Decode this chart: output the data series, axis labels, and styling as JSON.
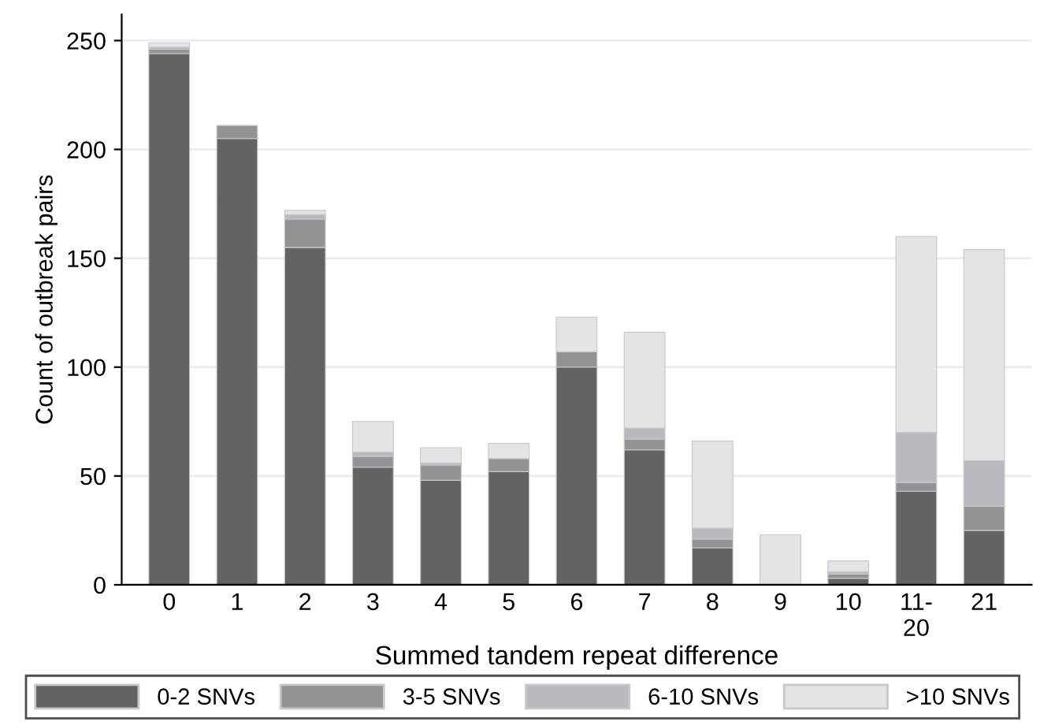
{
  "chart_data": {
    "type": "bar",
    "stacked": true,
    "xlabel": "Summed tandem repeat difference",
    "ylabel": "Count of outbreak pairs",
    "categories": [
      "0",
      "1",
      "2",
      "3",
      "4",
      "5",
      "6",
      "7",
      "8",
      "9",
      "10",
      "11-\n20",
      "21"
    ],
    "series": [
      {
        "name": "0-2 SNVs",
        "color": "#636365",
        "values": [
          244,
          205,
          155,
          54,
          48,
          52,
          100,
          62,
          17,
          0,
          3,
          43,
          25
        ]
      },
      {
        "name": "3-5 SNVs",
        "color": "#939396",
        "values": [
          2,
          6,
          13,
          5,
          7,
          6,
          7,
          5,
          4,
          0,
          2,
          4,
          11
        ]
      },
      {
        "name": "6-10 SNVs",
        "color": "#b9babd",
        "values": [
          1,
          0,
          2,
          2,
          1,
          0,
          0,
          5,
          5,
          null,
          1,
          23,
          21
        ]
      },
      {
        "name": ">10 SNVs",
        "color": "#e3e4e6",
        "values": [
          2,
          0,
          2,
          14,
          7,
          7,
          16,
          44,
          40,
          23,
          5,
          90,
          97
        ]
      }
    ],
    "ylim": [
      0,
      262
    ],
    "yticks": [
      0,
      50,
      100,
      150,
      200,
      250
    ],
    "grid": "y",
    "legend": "bottom"
  }
}
